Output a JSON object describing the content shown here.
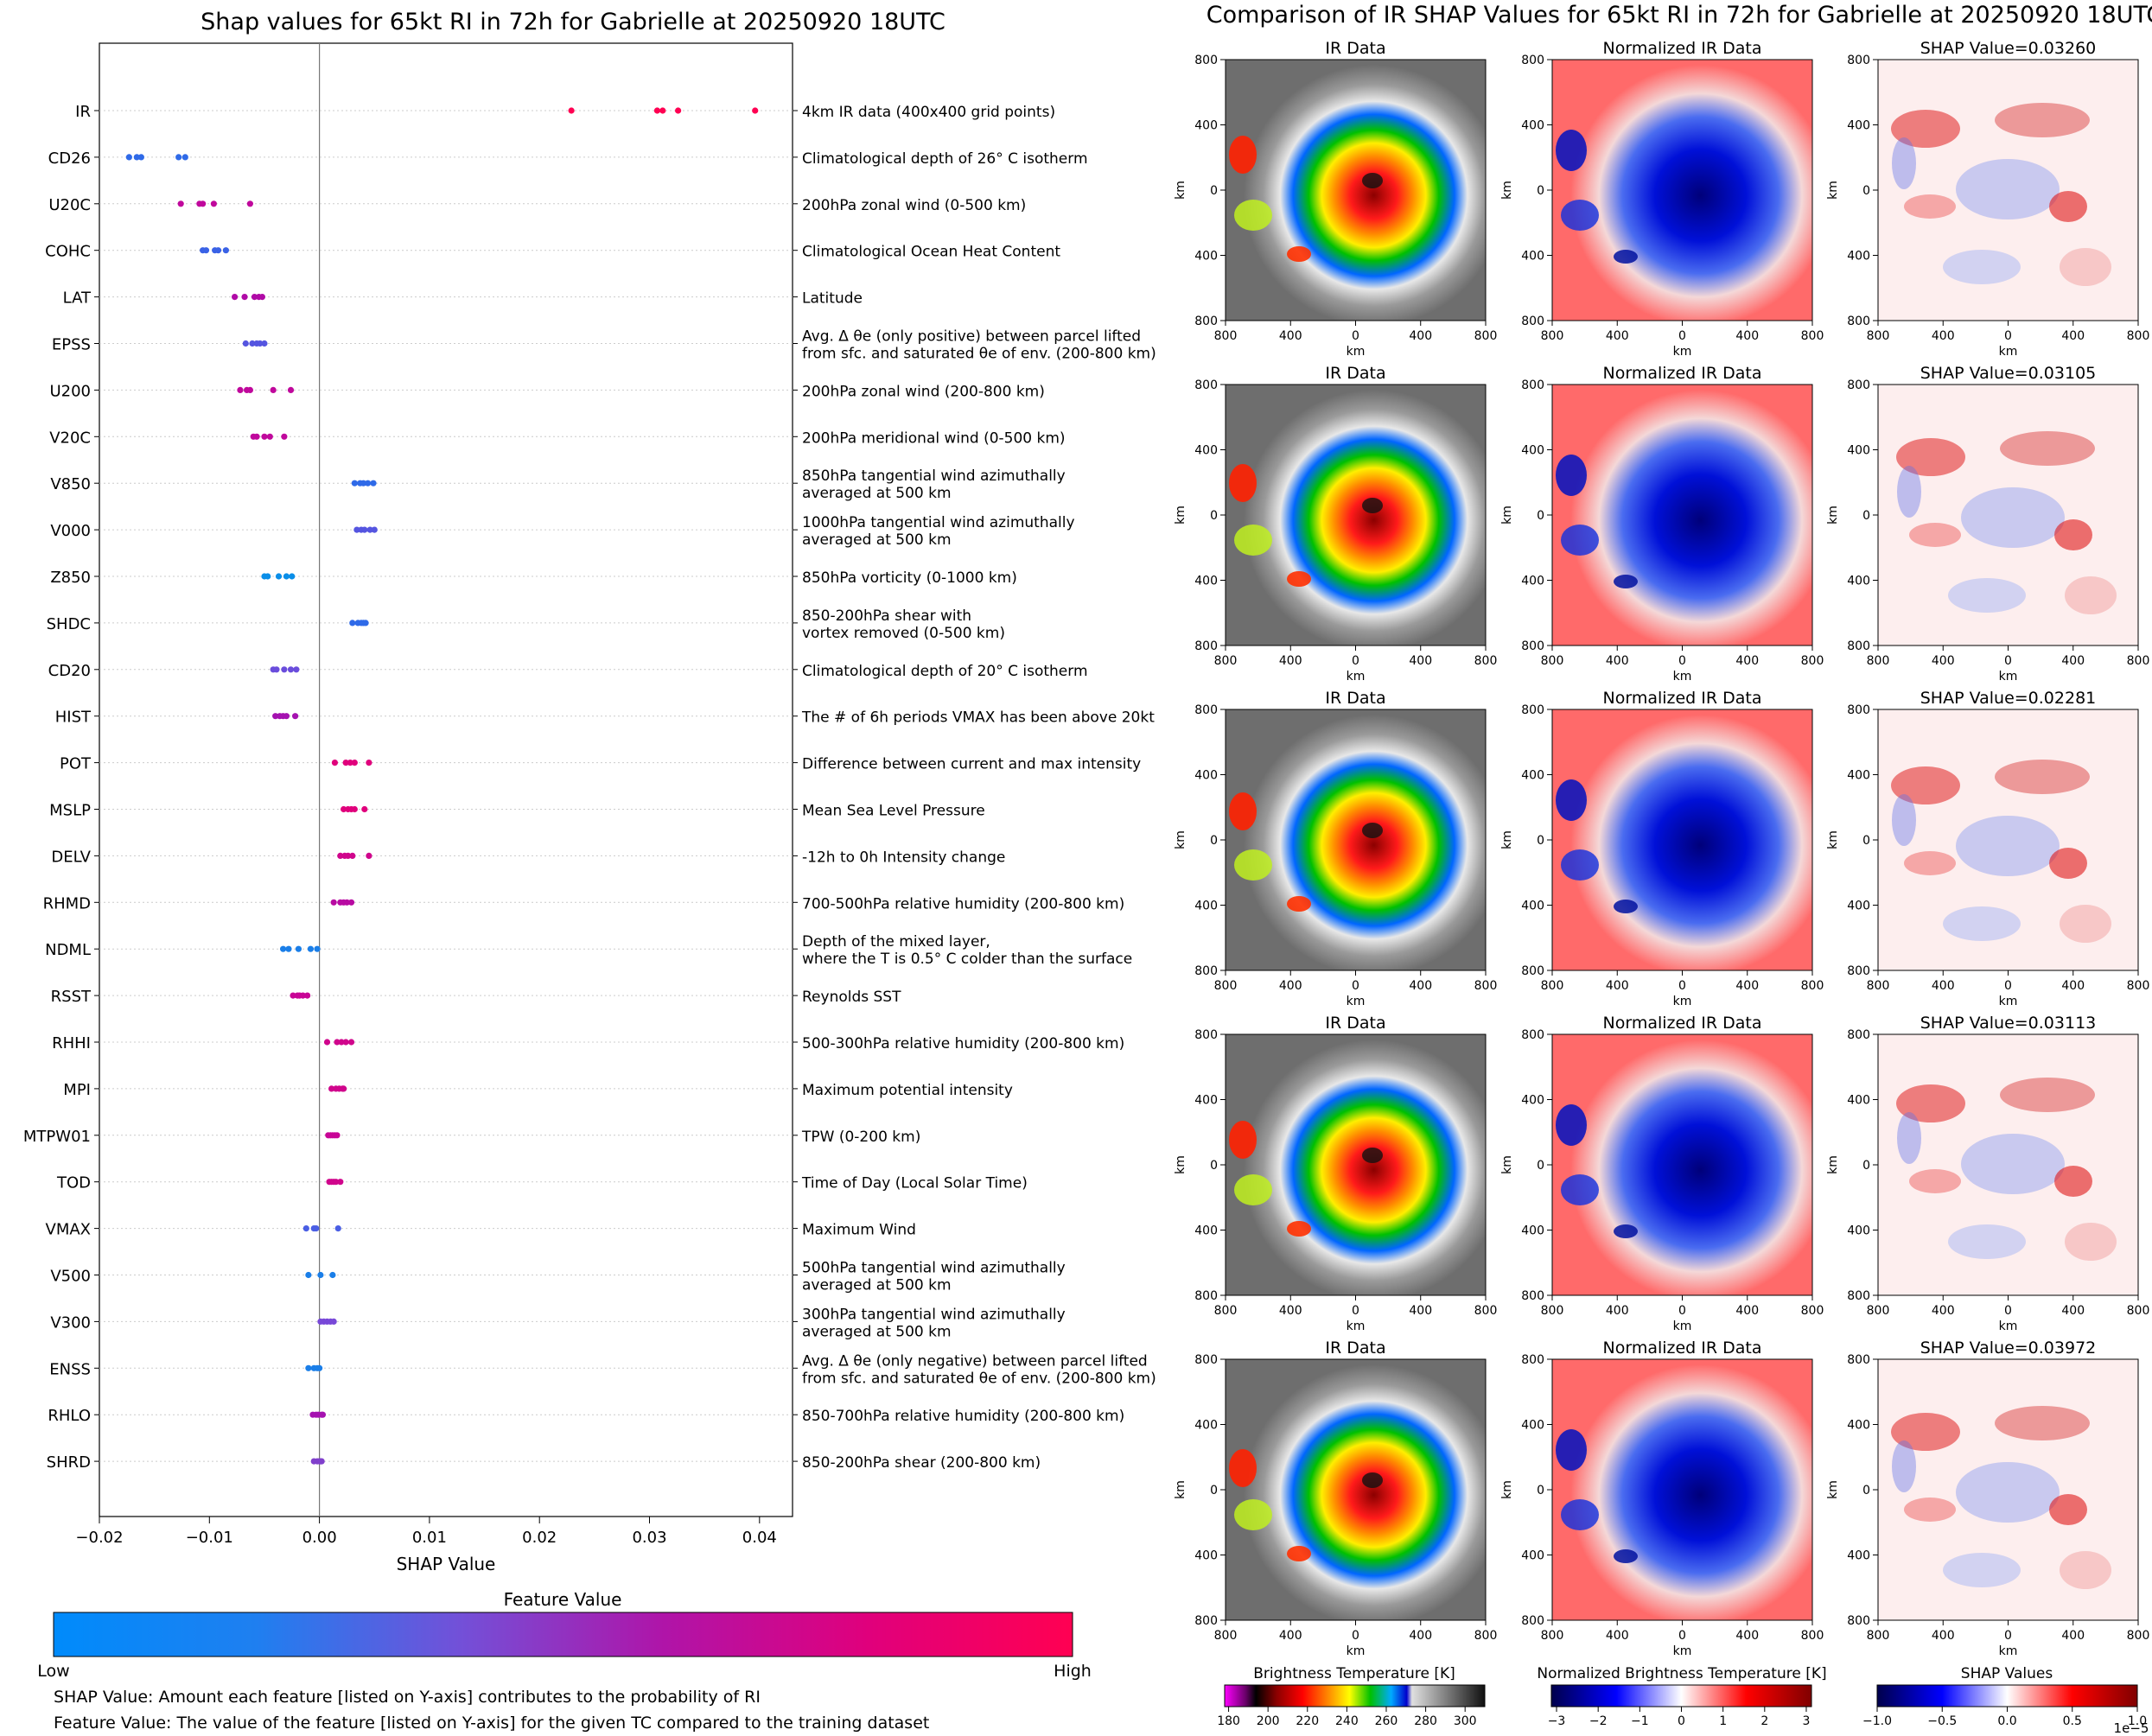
{
  "beeswarm": {
    "title": "Shap values for 65kt RI in 72h for Gabrielle at 20250920 18UTC",
    "xlabel": "SHAP Value",
    "xticks": [
      "−0.02",
      "−0.01",
      "0.00",
      "0.01",
      "0.02",
      "0.03",
      "0.04"
    ],
    "colorbar": {
      "title": "Feature Value",
      "low": "Low",
      "high": "High",
      "low_color": "#008bfb",
      "high_color": "#ff0052"
    }
  },
  "chart_data": [
    {
      "type": "scatter",
      "title": "Shap values for 65kt RI in 72h for Gabrielle at 20250920 18UTC",
      "xlabel": "SHAP Value",
      "xlim": [
        -0.02,
        0.043
      ],
      "features": [
        {
          "name": "IR",
          "desc": [
            "4km IR data (400x400 grid points)"
          ],
          "values": [
            0.0229,
            0.0307,
            0.0312,
            0.0326,
            0.0396
          ],
          "color": "#ff0052"
        },
        {
          "name": "CD26",
          "desc": [
            "Climatological depth of 26° C isotherm"
          ],
          "values": [
            -0.0173,
            -0.0166,
            -0.0162,
            -0.0128,
            -0.0122
          ],
          "color": "#2f6ae8"
        },
        {
          "name": "U20C",
          "desc": [
            "200hPa zonal wind (0-500 km)"
          ],
          "values": [
            -0.0126,
            -0.0109,
            -0.0106,
            -0.0096,
            -0.0063
          ],
          "color": "#c0089c"
        },
        {
          "name": "COHC",
          "desc": [
            "Climatological Ocean Heat Content"
          ],
          "values": [
            -0.0106,
            -0.0103,
            -0.0095,
            -0.0092,
            -0.0085
          ],
          "color": "#3a62e6"
        },
        {
          "name": "LAT",
          "desc": [
            "Latitude"
          ],
          "values": [
            -0.0077,
            -0.0068,
            -0.0059,
            -0.0055,
            -0.0052
          ],
          "color": "#b00aa6"
        },
        {
          "name": "EPSS",
          "desc": [
            "Avg. Δ θe (only positive) between parcel lifted",
            "from sfc. and saturated θe of env. (200-800 km)"
          ],
          "values": [
            -0.0067,
            -0.0061,
            -0.0057,
            -0.0054,
            -0.005
          ],
          "color": "#5555e0"
        },
        {
          "name": "U200",
          "desc": [
            "200hPa zonal wind (200-800 km)"
          ],
          "values": [
            -0.0072,
            -0.0066,
            -0.0063,
            -0.0042,
            -0.0026
          ],
          "color": "#c0089c"
        },
        {
          "name": "V20C",
          "desc": [
            "200hPa meridional wind (0-500 km)"
          ],
          "values": [
            -0.006,
            -0.0057,
            -0.005,
            -0.0045,
            -0.0032
          ],
          "color": "#c0089c"
        },
        {
          "name": "V850",
          "desc": [
            "850hPa tangential wind azimuthally",
            "averaged at 500 km"
          ],
          "values": [
            0.0032,
            0.0037,
            0.004,
            0.0044,
            0.0049
          ],
          "color": "#2f6ae8"
        },
        {
          "name": "V000",
          "desc": [
            "1000hPa tangential wind azimuthally",
            "averaged at 500 km"
          ],
          "values": [
            0.0034,
            0.0038,
            0.0041,
            0.0046,
            0.005
          ],
          "color": "#5555e0"
        },
        {
          "name": "Z850",
          "desc": [
            "850hPa vorticity (0-1000 km)"
          ],
          "values": [
            -0.005,
            -0.0047,
            -0.0037,
            -0.003,
            -0.0025
          ],
          "color": "#0a8ee8"
        },
        {
          "name": "SHDC",
          "desc": [
            "850-200hPa shear with",
            "vortex removed (0-500 km)"
          ],
          "values": [
            0.003,
            0.0035,
            0.0038,
            0.004,
            0.0042
          ],
          "color": "#2f6ae8"
        },
        {
          "name": "CD20",
          "desc": [
            "Climatological depth of 20° C isotherm"
          ],
          "values": [
            -0.0042,
            -0.0039,
            -0.0032,
            -0.0026,
            -0.0021
          ],
          "color": "#6a4ddc"
        },
        {
          "name": "HIST",
          "desc": [
            "The # of 6h periods VMAX has been above 20kt"
          ],
          "values": [
            -0.004,
            -0.0036,
            -0.0033,
            -0.003,
            -0.0022
          ],
          "color": "#a512b0"
        },
        {
          "name": "POT",
          "desc": [
            "Difference between current and max intensity"
          ],
          "values": [
            0.0014,
            0.0024,
            0.0028,
            0.0032,
            0.0045
          ],
          "color": "#e0007c"
        },
        {
          "name": "MSLP",
          "desc": [
            "Mean Sea Level Pressure"
          ],
          "values": [
            0.0022,
            0.0026,
            0.0029,
            0.0032,
            0.0041
          ],
          "color": "#e0007c"
        },
        {
          "name": "DELV",
          "desc": [
            "-12h to 0h Intensity change"
          ],
          "values": [
            0.0019,
            0.0023,
            0.0026,
            0.003,
            0.0045
          ],
          "color": "#d0058c"
        },
        {
          "name": "RHMD",
          "desc": [
            "700-500hPa relative humidity (200-800 km)"
          ],
          "values": [
            0.0013,
            0.0019,
            0.0022,
            0.0025,
            0.0029
          ],
          "color": "#b80aa2"
        },
        {
          "name": "NDML",
          "desc": [
            "Depth of the mixed layer,",
            "where the T is 0.5° C colder than the surface"
          ],
          "values": [
            -0.0033,
            -0.0028,
            -0.0019,
            -0.0008,
            -0.0002
          ],
          "color": "#1a7ee8"
        },
        {
          "name": "RSST",
          "desc": [
            "Reynolds SST"
          ],
          "values": [
            -0.0024,
            -0.002,
            -0.0018,
            -0.0015,
            -0.0011
          ],
          "color": "#c80596"
        },
        {
          "name": "RHHI",
          "desc": [
            "500-300hPa relative humidity (200-800 km)"
          ],
          "values": [
            0.0007,
            0.0016,
            0.002,
            0.0024,
            0.0029
          ],
          "color": "#d0058c"
        },
        {
          "name": "MPI",
          "desc": [
            "Maximum potential intensity"
          ],
          "values": [
            0.0011,
            0.0015,
            0.0018,
            0.0021,
            0.0022
          ],
          "color": "#d0058c"
        },
        {
          "name": "MTPW01",
          "desc": [
            "TPW (0-200 km)"
          ],
          "values": [
            0.0008,
            0.001,
            0.0012,
            0.0014,
            0.0016
          ],
          "color": "#c80596"
        },
        {
          "name": "TOD",
          "desc": [
            "Time of Day (Local Solar Time)"
          ],
          "values": [
            0.0009,
            0.0011,
            0.0013,
            0.0015,
            0.0019
          ],
          "color": "#d0058c"
        },
        {
          "name": "VMAX",
          "desc": [
            "Maximum Wind"
          ],
          "values": [
            -0.0012,
            -0.0005,
            -0.0003,
            0.0017
          ],
          "color": "#4a5ee4"
        },
        {
          "name": "V500",
          "desc": [
            "500hPa tangential wind azimuthally",
            "averaged at 500 km"
          ],
          "values": [
            -0.001,
            0.0001,
            0.0012
          ],
          "color": "#1a7ee8"
        },
        {
          "name": "V300",
          "desc": [
            "300hPa tangential wind azimuthally",
            "averaged at 500 km"
          ],
          "values": [
            0.0001,
            0.0004,
            0.0007,
            0.001,
            0.0013
          ],
          "color": "#7848d8"
        },
        {
          "name": "ENSS",
          "desc": [
            "Avg. Δ θe (only negative) between parcel lifted",
            "from sfc. and saturated θe of env. (200-800 km)"
          ],
          "values": [
            -0.001,
            -0.0005,
            -0.0002,
            0.0
          ],
          "color": "#1a7ee8"
        },
        {
          "name": "RHLO",
          "desc": [
            "850-700hPa relative humidity (200-800 km)"
          ],
          "values": [
            -0.0006,
            -0.0003,
            -0.0001,
            0.0002,
            0.0003
          ],
          "color": "#a512b0"
        },
        {
          "name": "SHRD",
          "desc": [
            "850-200hPa shear (200-800 km)"
          ],
          "values": [
            -0.0005,
            -0.0002,
            0.0,
            0.0001,
            0.0002
          ],
          "color": "#8040cc"
        }
      ]
    },
    {
      "type": "heatmap",
      "title": "Comparison of IR SHAP Values for 65kt RI in 72h for Gabrielle at 20250920 18UTC",
      "panel_titles": [
        "IR Data",
        "Normalized IR Data"
      ],
      "shap_values": [
        "0.03260",
        "0.03105",
        "0.02281",
        "0.03113",
        "0.03972"
      ],
      "shap_title_prefix": "SHAP Value=",
      "axis_label": "km",
      "xticks": [
        "800",
        "400",
        "0",
        "400",
        "800"
      ],
      "yticks": [
        "800",
        "400",
        "0",
        "400",
        "800"
      ],
      "colorbars": [
        {
          "title": "Brightness Temperature [K]",
          "ticks": [
            "180",
            "200",
            "220",
            "240",
            "260",
            "280",
            "300"
          ]
        },
        {
          "title": "Normalized Brightness Temperature [K]",
          "ticks": [
            "−3",
            "−2",
            "−1",
            "0",
            "1",
            "2",
            "3"
          ]
        },
        {
          "title": "SHAP Values",
          "ticks": [
            "−1.0",
            "−0.5",
            "0.0",
            "0.5",
            "1.0"
          ],
          "offset": "1e−5"
        }
      ]
    }
  ],
  "footnotes": {
    "shap": "SHAP Value: Amount each feature [listed on Y-axis] contributes to the probability of RI",
    "feature": "Feature Value: The value of the feature [listed on Y-axis] for the given TC compared to the training dataset"
  }
}
